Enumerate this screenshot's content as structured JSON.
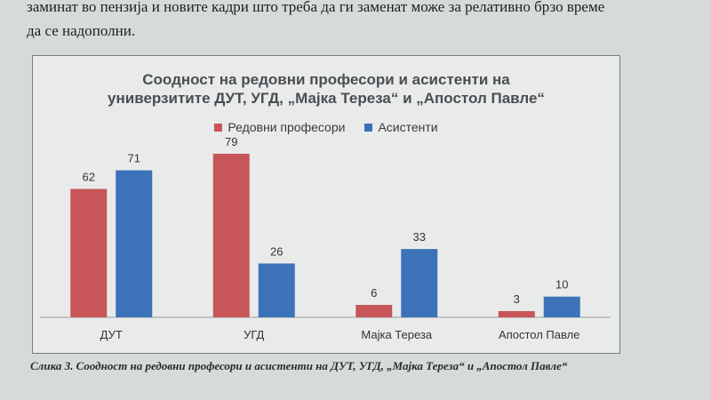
{
  "page_text": {
    "line1": "заминат во пензија и новите кадри што треба да ги заменат може за релативно брзо време",
    "line2": "да се надополни."
  },
  "caption": "Слика 3. Соодност на редовни професори и асистенти на ДУТ, УГД, „Мајка Тереза“ и „Апостол Павле“",
  "colors": {
    "series1": "#c8555a",
    "series2": "#3c72b8",
    "title": "#4a4d52"
  },
  "chart_data": {
    "type": "bar",
    "title_line1": "Соодност на редовни професори и асистенти на",
    "title_line2": "универзитите ДУТ, УГД, „Мајка Тереза“ и „Апостол Павле“",
    "categories": [
      "ДУТ",
      "УГД",
      "Мајка Тереза",
      "Апостол Павле"
    ],
    "series": [
      {
        "name": "Редовни професори",
        "values": [
          62,
          79,
          6,
          3
        ]
      },
      {
        "name": "Асистенти",
        "values": [
          71,
          26,
          33,
          10
        ]
      }
    ],
    "ylim": [
      0,
      85
    ],
    "grid": false,
    "legend": "top-center"
  }
}
